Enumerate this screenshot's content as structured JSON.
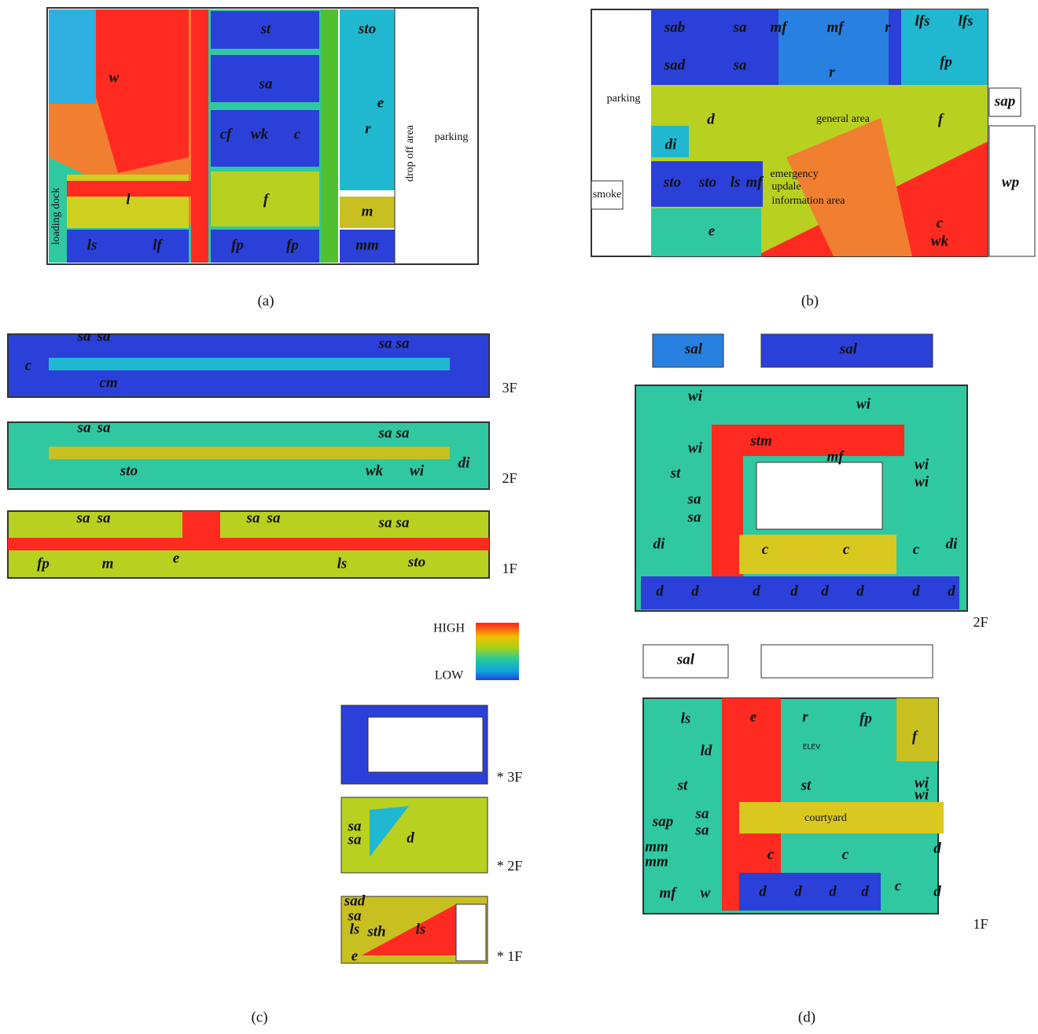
{
  "panels": [
    {
      "caption": "(a)",
      "labels": [
        "w",
        "st",
        "sto",
        "sa",
        "e",
        "r",
        "cf",
        "wk",
        "c",
        "drop off area",
        "parking",
        "l",
        "f",
        "m",
        "loading dock",
        "ls",
        "lf",
        "fp",
        "fp",
        "mm"
      ]
    },
    {
      "caption": "(b)",
      "labels": [
        "sab",
        "sa",
        "mf",
        "mf",
        "r",
        "lfs",
        "lfs",
        "sad",
        "sa",
        "r",
        "fp",
        "parking",
        "sap",
        "d",
        "general area",
        "f",
        "di",
        "sto",
        "sto",
        "ls",
        "mf",
        "emergency",
        "updale",
        "information area",
        "wp",
        "smoke",
        "c",
        "wk",
        "e"
      ]
    },
    {
      "caption": "(c)",
      "labels": [
        "sa",
        "sa",
        "c",
        "cm",
        "sa",
        "sa",
        "3F",
        "sa",
        "sa",
        "sa",
        "sa",
        "sto",
        "wk",
        "wi",
        "di",
        "2F",
        "sa",
        "sa",
        "sa",
        "sa",
        "sa",
        "sa",
        "fp",
        "m",
        "e",
        "ls",
        "sto",
        "1F",
        "* 3F",
        "sa",
        "sa",
        "d",
        "* 2F",
        "sad",
        "sa",
        "ls",
        "sth",
        "ls",
        "e",
        "* 1F"
      ]
    },
    {
      "caption": "(d)",
      "labels": [
        "sal",
        "sal",
        "wi",
        "wi",
        "wi",
        "stm",
        "mf",
        "st",
        "wi",
        "wi",
        "sa",
        "sa",
        "di",
        "c",
        "c",
        "c",
        "di",
        "d",
        "d",
        "d",
        "d",
        "d",
        "d",
        "d",
        "d",
        "2F",
        "sal",
        "e",
        "r",
        "fp",
        "f",
        "ls",
        "ld",
        "ELEV",
        "st",
        "st",
        "wi",
        "wi",
        "sap",
        "sa",
        "sa",
        "courtyard",
        "mm",
        "mm",
        "c",
        "c",
        "d",
        "mf",
        "w",
        "d",
        "d",
        "d",
        "d",
        "c",
        "d",
        "1F"
      ]
    }
  ],
  "legend": {
    "high": "HIGH",
    "low": "LOW"
  }
}
